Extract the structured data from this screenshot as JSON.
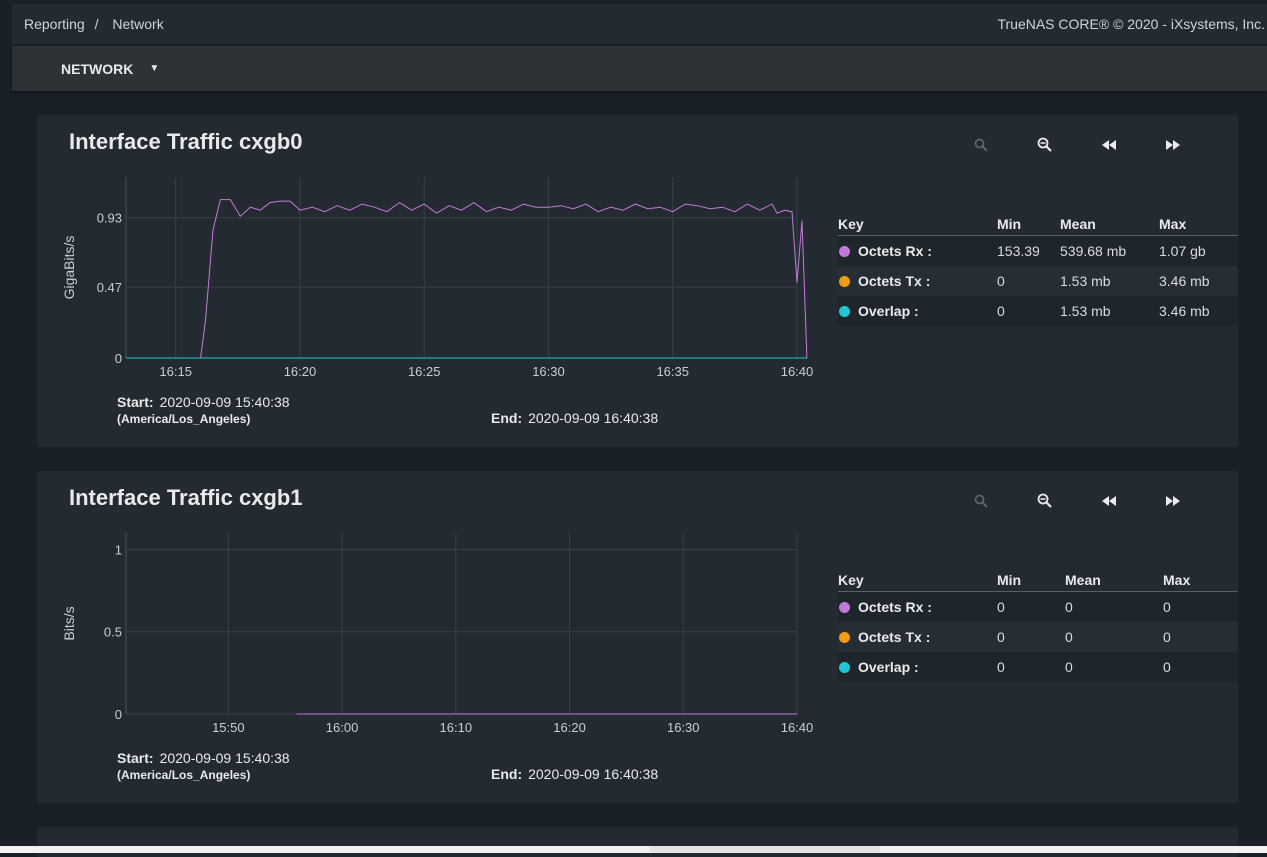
{
  "breadcrumb": {
    "part1": "Reporting",
    "sep": "/",
    "part2": "Network"
  },
  "copyright": "TrueNAS CORE® © 2020 - iXsystems, Inc.",
  "toolbar": {
    "selector_label": "NETWORK"
  },
  "colors": {
    "rx": "#c27ad8",
    "tx": "#f39c12",
    "overlap": "#1fc8d4"
  },
  "legend_headers": {
    "key": "Key",
    "min": "Min",
    "mean": "Mean",
    "max": "Max"
  },
  "range_labels": {
    "start": "Start:",
    "end": "End:"
  },
  "charts": [
    {
      "title": "Interface Traffic cxgb0",
      "start": "2020-09-09 15:40:38",
      "timezone": "(America/Los_Angeles)",
      "end": "2020-09-09 16:40:38",
      "legend": [
        {
          "label": "Octets Rx :",
          "min": "153.39",
          "mean": "539.68 mb",
          "max": "1.07 gb"
        },
        {
          "label": "Octets Tx :",
          "min": "0",
          "mean": "1.53 mb",
          "max": "3.46 mb"
        },
        {
          "label": "Overlap :",
          "min": "0",
          "mean": "1.53 mb",
          "max": "3.46 mb"
        }
      ]
    },
    {
      "title": "Interface Traffic cxgb1",
      "start": "2020-09-09 15:40:38",
      "timezone": "(America/Los_Angeles)",
      "end": "2020-09-09 16:40:38",
      "legend": [
        {
          "label": "Octets Rx :",
          "min": "0",
          "mean": "0",
          "max": "0"
        },
        {
          "label": "Octets Tx :",
          "min": "0",
          "mean": "0",
          "max": "0"
        },
        {
          "label": "Overlap :",
          "min": "0",
          "mean": "0",
          "max": "0"
        }
      ]
    }
  ],
  "chart_data": [
    {
      "type": "line",
      "ylabel": "GigaBits/s",
      "x_ticks": [
        "16:15",
        "16:20",
        "16:25",
        "16:30",
        "16:35",
        "16:40"
      ],
      "y_ticks": [
        "0",
        "0.47",
        "0.93"
      ],
      "xlim": [
        "16:13",
        "16:40"
      ],
      "ylim": [
        0,
        1.2
      ],
      "series": [
        {
          "name": "Octets Rx",
          "x": [
            "16:16.0",
            "16:16.2",
            "16:16.5",
            "16:16.8",
            "16:17.2",
            "16:17.6",
            "16:18.0",
            "16:18.4",
            "16:18.8",
            "16:19.2",
            "16:19.6",
            "16:20",
            "16:20.5",
            "16:21",
            "16:21.5",
            "16:22",
            "16:22.5",
            "16:23",
            "16:23.5",
            "16:24",
            "16:24.5",
            "16:25",
            "16:25.5",
            "16:26",
            "16:26.5",
            "16:27",
            "16:27.5",
            "16:28",
            "16:28.5",
            "16:29",
            "16:29.5",
            "16:30",
            "16:30.5",
            "16:31",
            "16:31.5",
            "16:32",
            "16:32.5",
            "16:33",
            "16:33.5",
            "16:34",
            "16:34.5",
            "16:35",
            "16:35.5",
            "16:36",
            "16:36.5",
            "16:37",
            "16:37.5",
            "16:38",
            "16:38.5",
            "16:39",
            "16:39.2",
            "16:39.5",
            "16:39.8",
            "16:40.0",
            "16:40.2",
            "16:40.4"
          ],
          "values": [
            0,
            0.25,
            0.85,
            1.05,
            1.05,
            0.94,
            1.0,
            0.98,
            1.03,
            1.04,
            1.04,
            0.98,
            1.0,
            0.97,
            1.01,
            0.98,
            1.02,
            1.0,
            0.97,
            1.03,
            0.98,
            1.02,
            0.96,
            1.01,
            0.98,
            1.03,
            0.97,
            1.0,
            0.98,
            1.02,
            1.0,
            1.0,
            1.01,
            0.99,
            1.02,
            0.97,
            1.0,
            0.98,
            1.02,
            0.99,
            1.0,
            0.97,
            1.02,
            1.01,
            0.99,
            1.0,
            0.97,
            1.02,
            0.98,
            1.02,
            0.96,
            0.98,
            0.97,
            0.5,
            0.91,
            0
          ]
        },
        {
          "name": "Octets Tx",
          "x": [
            "16:13",
            "16:40.4"
          ],
          "values": [
            0,
            0
          ]
        },
        {
          "name": "Overlap",
          "x": [
            "16:13",
            "16:40.4"
          ],
          "values": [
            0,
            0
          ]
        }
      ]
    },
    {
      "type": "line",
      "ylabel": "Bits/s",
      "x_ticks": [
        "15:50",
        "16:00",
        "16:10",
        "16:20",
        "16:30",
        "16:40"
      ],
      "y_ticks": [
        "0",
        "0.5",
        "1"
      ],
      "xlim": [
        "15:41",
        "16:40"
      ],
      "ylim": [
        0,
        1.1
      ],
      "series": [
        {
          "name": "Octets Rx",
          "x": [
            "15:56",
            "16:40"
          ],
          "values": [
            0,
            0
          ]
        },
        {
          "name": "Octets Tx",
          "x": [
            "15:56",
            "16:40"
          ],
          "values": [
            0,
            0
          ]
        },
        {
          "name": "Overlap",
          "x": [
            "15:56",
            "16:40"
          ],
          "values": [
            0,
            0
          ]
        }
      ]
    }
  ]
}
